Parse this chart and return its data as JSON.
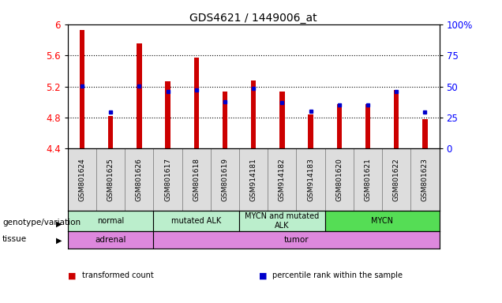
{
  "title": "GDS4621 / 1449006_at",
  "samples": [
    "GSM801624",
    "GSM801625",
    "GSM801626",
    "GSM801617",
    "GSM801618",
    "GSM801619",
    "GSM914181",
    "GSM914182",
    "GSM914183",
    "GSM801620",
    "GSM801621",
    "GSM801622",
    "GSM801623"
  ],
  "red_values": [
    5.93,
    4.82,
    5.75,
    5.27,
    5.57,
    5.13,
    5.28,
    5.13,
    4.84,
    4.97,
    4.97,
    5.15,
    4.78
  ],
  "blue_values": [
    5.21,
    4.87,
    5.21,
    5.13,
    5.15,
    5.0,
    5.17,
    4.99,
    4.88,
    4.96,
    4.96,
    5.13,
    4.87
  ],
  "ylim_left": [
    4.4,
    6.0
  ],
  "ylim_right": [
    0,
    100
  ],
  "yticks_left": [
    4.4,
    4.8,
    5.2,
    5.6,
    6.0
  ],
  "ytick_labels_left": [
    "4.4",
    "4.8",
    "5.2",
    "5.6",
    "6"
  ],
  "yticks_right": [
    0,
    25,
    50,
    75,
    100
  ],
  "ytick_labels_right": [
    "0",
    "25",
    "50",
    "75",
    "100%"
  ],
  "bar_color": "#cc0000",
  "dot_color": "#0000cc",
  "base": 4.4,
  "bar_width": 0.18,
  "groups": [
    {
      "label": "normal",
      "start": 0,
      "end": 3,
      "color": "#aaddaa"
    },
    {
      "label": "mutated ALK",
      "start": 3,
      "end": 6,
      "color": "#aaddaa"
    },
    {
      "label": "MYCN and mutated\nALK",
      "start": 6,
      "end": 9,
      "color": "#aaddaa"
    },
    {
      "label": "MYCN",
      "start": 9,
      "end": 13,
      "color": "#44cc44"
    }
  ],
  "tissues": [
    {
      "label": "adrenal",
      "start": 0,
      "end": 3,
      "color": "#dd88dd"
    },
    {
      "label": "tumor",
      "start": 3,
      "end": 13,
      "color": "#dd88dd"
    }
  ],
  "genotype_label": "genotype/variation",
  "tissue_label": "tissue",
  "legend_items": [
    {
      "color": "#cc0000",
      "label": "transformed count"
    },
    {
      "color": "#0000cc",
      "label": "percentile rank within the sample"
    }
  ]
}
